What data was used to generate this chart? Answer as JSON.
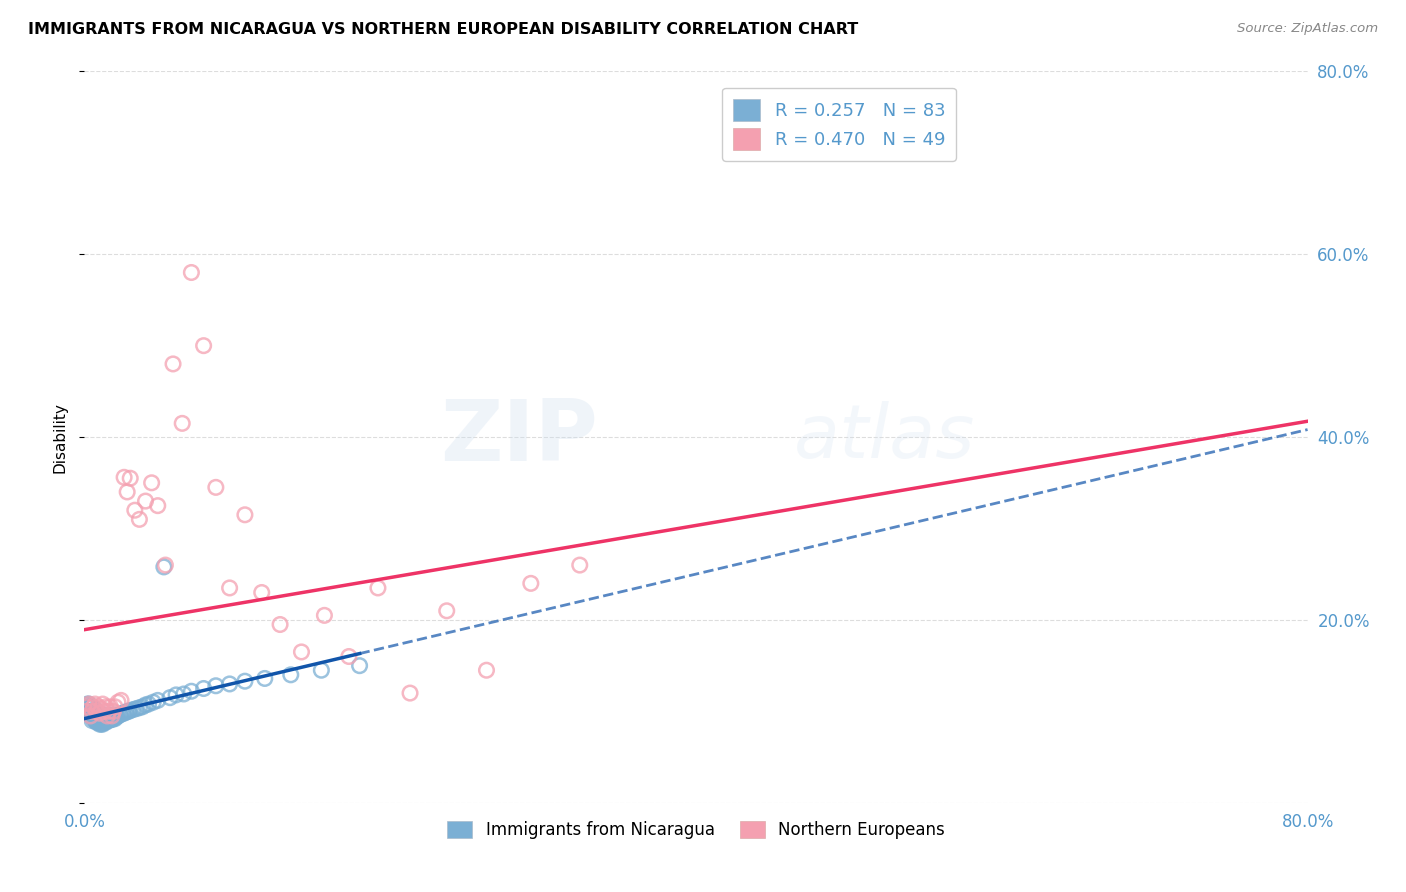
{
  "title": "IMMIGRANTS FROM NICARAGUA VS NORTHERN EUROPEAN DISABILITY CORRELATION CHART",
  "source": "Source: ZipAtlas.com",
  "ylabel": "Disability",
  "xlim": [
    0.0,
    0.8
  ],
  "ylim": [
    0.0,
    0.8
  ],
  "xticks": [
    0.0,
    0.2,
    0.4,
    0.6,
    0.8
  ],
  "yticks": [
    0.0,
    0.2,
    0.4,
    0.6,
    0.8
  ],
  "xticklabels": [
    "0.0%",
    "",
    "",
    "",
    "80.0%"
  ],
  "yticklabels": [
    "",
    "20.0%",
    "40.0%",
    "60.0%",
    "80.0%"
  ],
  "R_nicaragua": 0.257,
  "N_nicaragua": 83,
  "R_northern": 0.47,
  "N_northern": 49,
  "blue_color": "#7BAFD4",
  "pink_color": "#F4A0B0",
  "blue_scatter_edge": "#5588BB",
  "pink_scatter_edge": "#E06080",
  "blue_line_color": "#1155AA",
  "pink_line_color": "#EE3366",
  "tick_color": "#5599CC",
  "watermark": "ZIPatlas",
  "nicaragua_x": [
    0.001,
    0.002,
    0.002,
    0.003,
    0.003,
    0.003,
    0.004,
    0.004,
    0.004,
    0.005,
    0.005,
    0.005,
    0.005,
    0.006,
    0.006,
    0.006,
    0.007,
    0.007,
    0.007,
    0.007,
    0.008,
    0.008,
    0.008,
    0.009,
    0.009,
    0.009,
    0.01,
    0.01,
    0.01,
    0.011,
    0.011,
    0.011,
    0.012,
    0.012,
    0.012,
    0.013,
    0.013,
    0.013,
    0.014,
    0.014,
    0.015,
    0.015,
    0.016,
    0.016,
    0.017,
    0.017,
    0.018,
    0.018,
    0.019,
    0.019,
    0.02,
    0.02,
    0.021,
    0.022,
    0.023,
    0.024,
    0.025,
    0.026,
    0.027,
    0.028,
    0.029,
    0.03,
    0.032,
    0.034,
    0.036,
    0.038,
    0.04,
    0.042,
    0.045,
    0.048,
    0.052,
    0.056,
    0.06,
    0.065,
    0.07,
    0.078,
    0.086,
    0.095,
    0.105,
    0.118,
    0.135,
    0.155,
    0.18
  ],
  "nicaragua_y": [
    0.1,
    0.105,
    0.108,
    0.1,
    0.105,
    0.108,
    0.095,
    0.1,
    0.105,
    0.09,
    0.095,
    0.1,
    0.105,
    0.092,
    0.096,
    0.1,
    0.09,
    0.094,
    0.098,
    0.102,
    0.088,
    0.092,
    0.096,
    0.088,
    0.092,
    0.096,
    0.086,
    0.09,
    0.094,
    0.086,
    0.09,
    0.094,
    0.086,
    0.09,
    0.093,
    0.088,
    0.092,
    0.096,
    0.088,
    0.092,
    0.09,
    0.094,
    0.09,
    0.094,
    0.091,
    0.095,
    0.091,
    0.095,
    0.092,
    0.096,
    0.092,
    0.095,
    0.094,
    0.095,
    0.096,
    0.097,
    0.098,
    0.098,
    0.099,
    0.1,
    0.1,
    0.101,
    0.102,
    0.103,
    0.104,
    0.105,
    0.107,
    0.108,
    0.11,
    0.112,
    0.258,
    0.115,
    0.118,
    0.119,
    0.122,
    0.125,
    0.128,
    0.13,
    0.133,
    0.136,
    0.14,
    0.145,
    0.15
  ],
  "northern_x": [
    0.001,
    0.002,
    0.003,
    0.004,
    0.005,
    0.006,
    0.007,
    0.008,
    0.009,
    0.01,
    0.011,
    0.012,
    0.013,
    0.014,
    0.015,
    0.016,
    0.017,
    0.018,
    0.019,
    0.02,
    0.022,
    0.024,
    0.026,
    0.028,
    0.03,
    0.033,
    0.036,
    0.04,
    0.044,
    0.048,
    0.053,
    0.058,
    0.064,
    0.07,
    0.078,
    0.086,
    0.095,
    0.105,
    0.116,
    0.128,
    0.142,
    0.157,
    0.173,
    0.192,
    0.213,
    0.237,
    0.263,
    0.292,
    0.324
  ],
  "northern_y": [
    0.1,
    0.105,
    0.108,
    0.095,
    0.1,
    0.105,
    0.108,
    0.1,
    0.105,
    0.098,
    0.103,
    0.108,
    0.1,
    0.105,
    0.095,
    0.1,
    0.105,
    0.095,
    0.1,
    0.105,
    0.11,
    0.112,
    0.356,
    0.34,
    0.355,
    0.32,
    0.31,
    0.33,
    0.35,
    0.325,
    0.26,
    0.48,
    0.415,
    0.58,
    0.5,
    0.345,
    0.235,
    0.315,
    0.23,
    0.195,
    0.165,
    0.205,
    0.16,
    0.235,
    0.12,
    0.21,
    0.145,
    0.24,
    0.26
  ]
}
